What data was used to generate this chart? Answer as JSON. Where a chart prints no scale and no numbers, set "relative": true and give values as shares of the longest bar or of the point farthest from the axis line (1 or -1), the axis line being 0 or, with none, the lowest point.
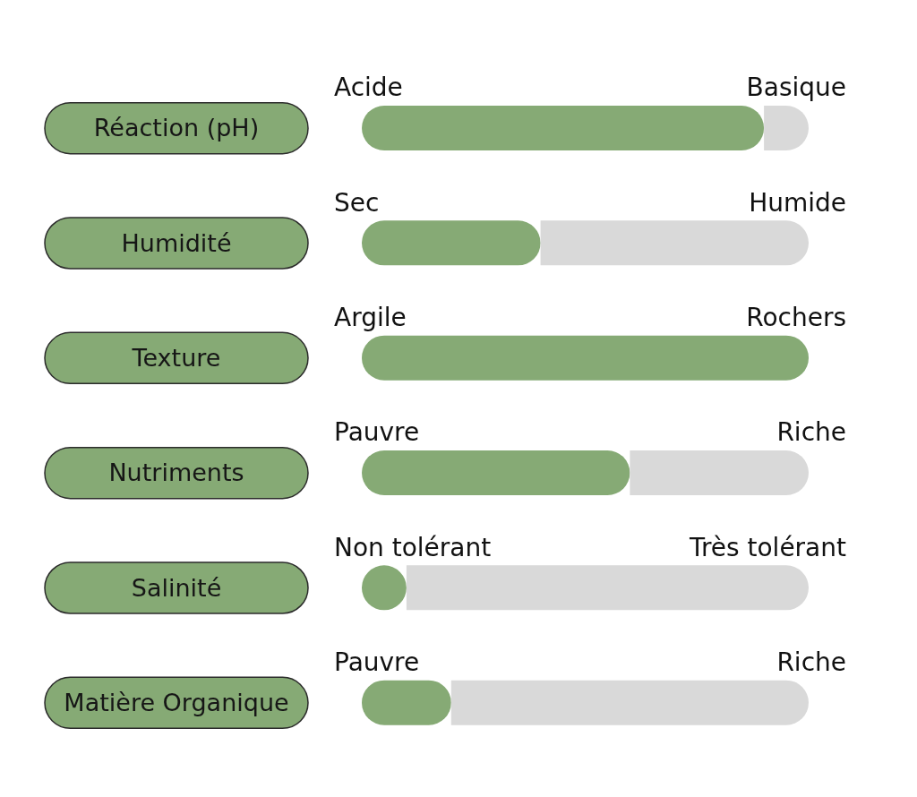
{
  "chart_data": {
    "type": "bar",
    "orientation": "horizontal",
    "stacked": true,
    "relative": true,
    "categories": [
      "Réaction (pH)",
      "Humidité",
      "Texture",
      "Nutriments",
      "Salinité",
      "Matière Organique"
    ],
    "series": [
      {
        "color": "#86aa75",
        "values": [
          0.9,
          0.4,
          1,
          0.6,
          0.1,
          0.2
        ]
      },
      {
        "color": "#d9d9d9",
        "values": [
          0.1,
          0.6,
          0,
          0.4,
          0.9,
          0.8
        ]
      }
    ],
    "annotations": [
      "Acide",
      "Basique",
      "Sec",
      "Humide",
      "Argile",
      "Rochers",
      "Pauvre",
      "Riche",
      "Non tolérant",
      "Très tolérant",
      "Pauvre",
      "Riche"
    ]
  }
}
